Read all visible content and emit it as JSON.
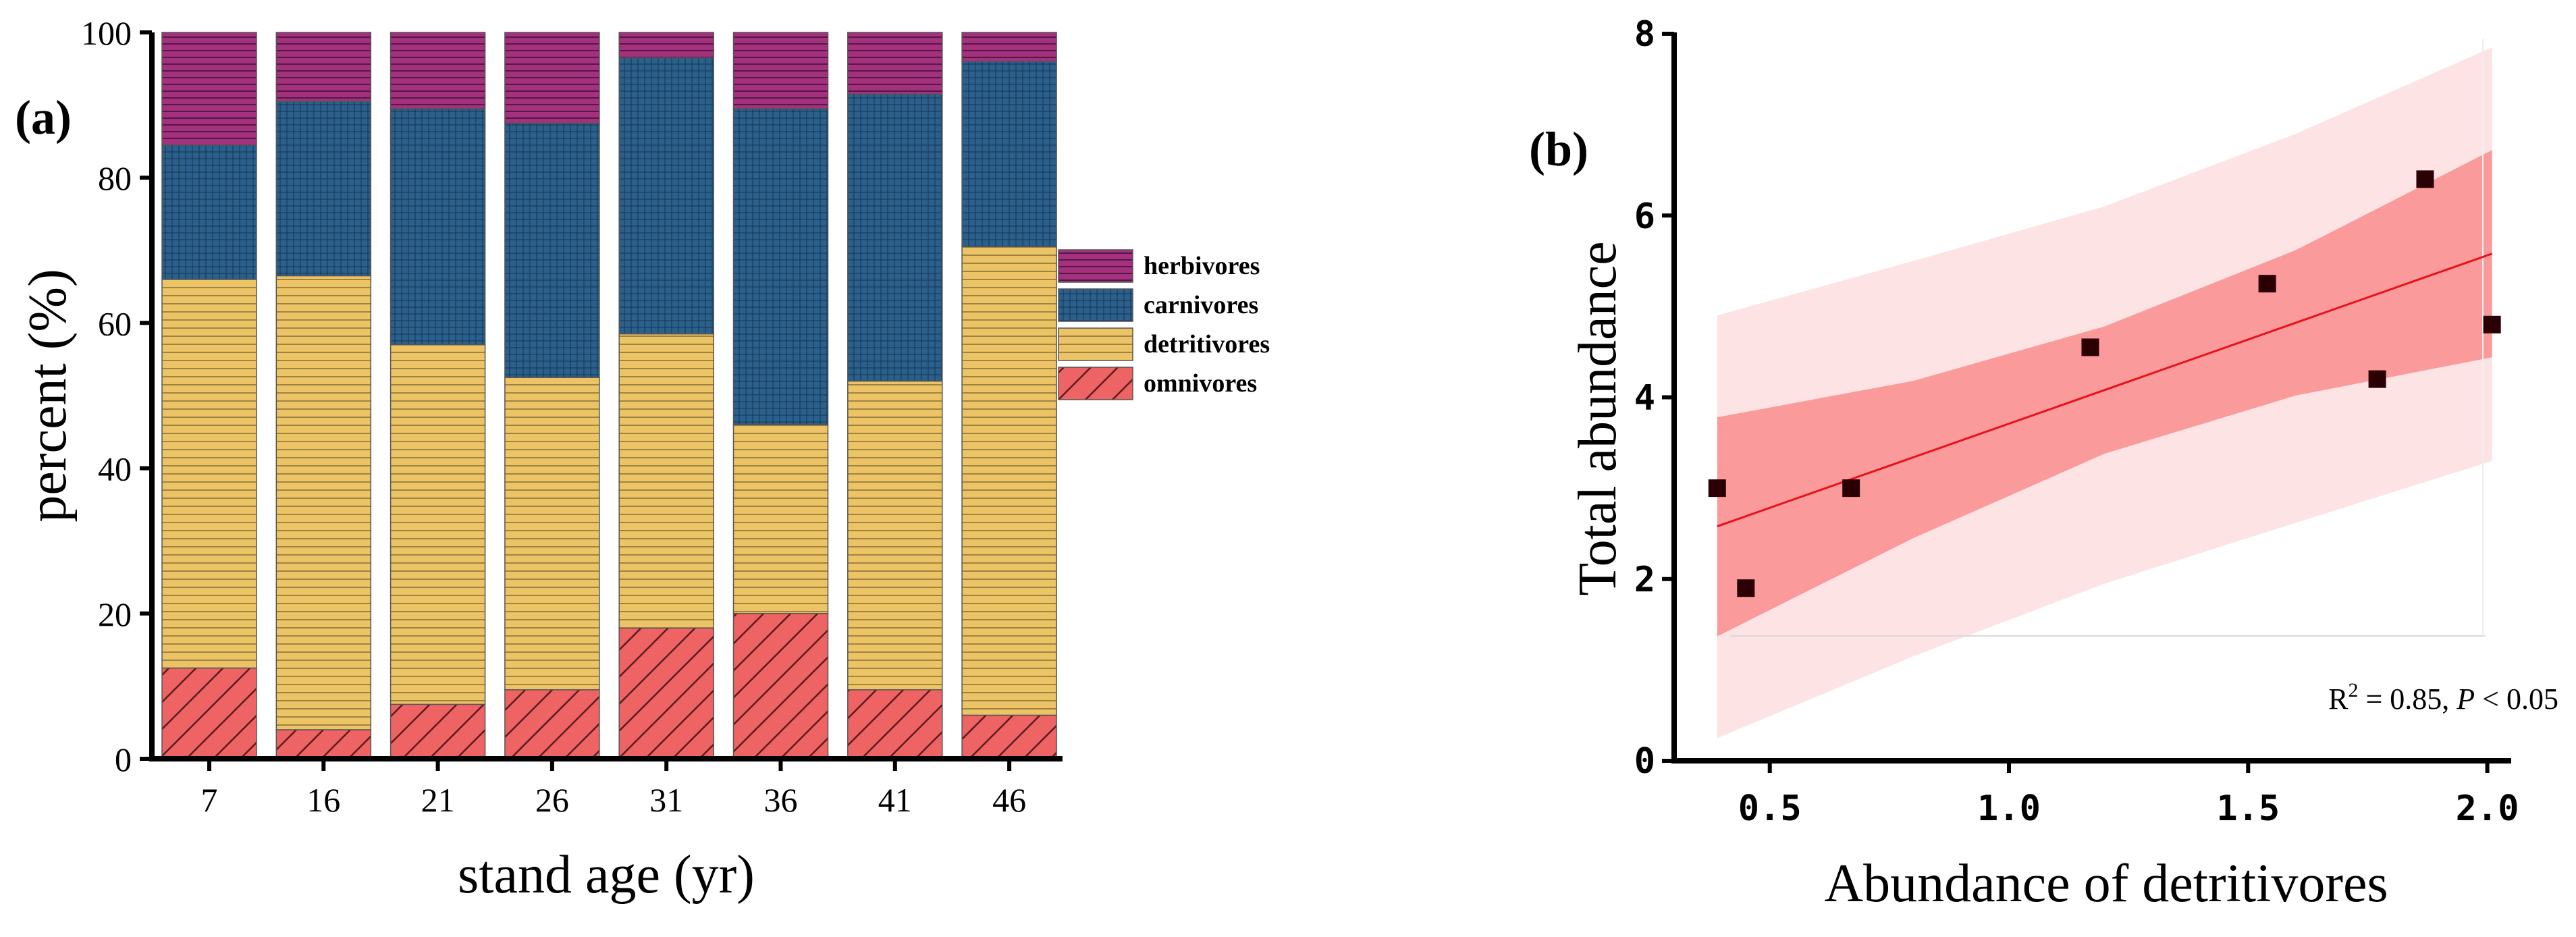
{
  "chart_data": [
    {
      "type": "bar",
      "stacked": true,
      "panel_label": "(a)",
      "categories": [
        "7",
        "16",
        "21",
        "26",
        "31",
        "36",
        "41",
        "46"
      ],
      "xlabel": "stand age (yr)",
      "ylabel": "percent (%)",
      "ylim": [
        0,
        100
      ],
      "yticks": [
        "0",
        "20",
        "40",
        "60",
        "80",
        "100"
      ],
      "legend_position": "right",
      "series": [
        {
          "name": "omnivores",
          "color": "#ee6363",
          "hatch": "diagonal",
          "values": [
            12.5,
            4,
            7.5,
            9.5,
            18,
            20,
            9.5,
            6
          ]
        },
        {
          "name": "detritivores",
          "color": "#ecc466",
          "hatch": "horizontal",
          "values": [
            53.5,
            62.5,
            49.5,
            43,
            40.5,
            26,
            42.5,
            64.5
          ]
        },
        {
          "name": "carnivores",
          "color": "#2b5f8c",
          "hatch": "grid",
          "values": [
            18.5,
            24,
            32.5,
            35,
            38,
            43.5,
            39.5,
            25.5
          ]
        },
        {
          "name": "herbivores",
          "color": "#a3317d",
          "hatch": "horizontal",
          "values": [
            15.5,
            9.5,
            10.5,
            12.5,
            3.5,
            10.5,
            8.5,
            4
          ]
        }
      ],
      "legend_order": [
        "herbivores",
        "carnivores",
        "detritivores",
        "omnivores"
      ]
    },
    {
      "type": "scatter",
      "panel_label": "(b)",
      "xlabel": "Abundance of detritivores",
      "ylabel": "Total abundance",
      "xlim": [
        0.3,
        2.05
      ],
      "ylim": [
        0,
        8
      ],
      "xticks": [
        "0.5",
        "1.0",
        "1.5",
        "2.0"
      ],
      "yticks": [
        "0",
        "2",
        "4",
        "6",
        "8"
      ],
      "points": [
        {
          "x": 0.39,
          "y": 3.0
        },
        {
          "x": 0.45,
          "y": 1.9
        },
        {
          "x": 0.67,
          "y": 3.0
        },
        {
          "x": 1.17,
          "y": 4.55
        },
        {
          "x": 1.54,
          "y": 5.25
        },
        {
          "x": 1.77,
          "y": 4.2
        },
        {
          "x": 1.87,
          "y": 6.4
        },
        {
          "x": 2.01,
          "y": 4.8
        }
      ],
      "fit_line": {
        "x": [
          0.39,
          2.01
        ],
        "y": [
          2.58,
          5.58
        ],
        "color": "#e8121b"
      },
      "confidence_band": {
        "x": [
          0.39,
          0.8,
          1.2,
          1.6,
          2.01
        ],
        "lower": [
          1.37,
          2.45,
          3.38,
          4.02,
          4.44
        ],
        "upper": [
          3.78,
          4.18,
          4.78,
          5.62,
          6.72
        ],
        "color": "#fb9a9a"
      },
      "prediction_band": {
        "x": [
          0.39,
          0.8,
          1.2,
          1.6,
          2.01
        ],
        "lower": [
          0.25,
          1.15,
          1.95,
          2.62,
          3.3
        ],
        "upper": [
          4.9,
          5.5,
          6.1,
          6.9,
          7.85
        ],
        "color": "#fde3e3"
      },
      "annotation": {
        "r2_prefix": "R",
        "r2_sup": "2",
        "r2_value": " = 0.85, ",
        "p_label": "P",
        "p_value": " < 0.05"
      }
    }
  ]
}
